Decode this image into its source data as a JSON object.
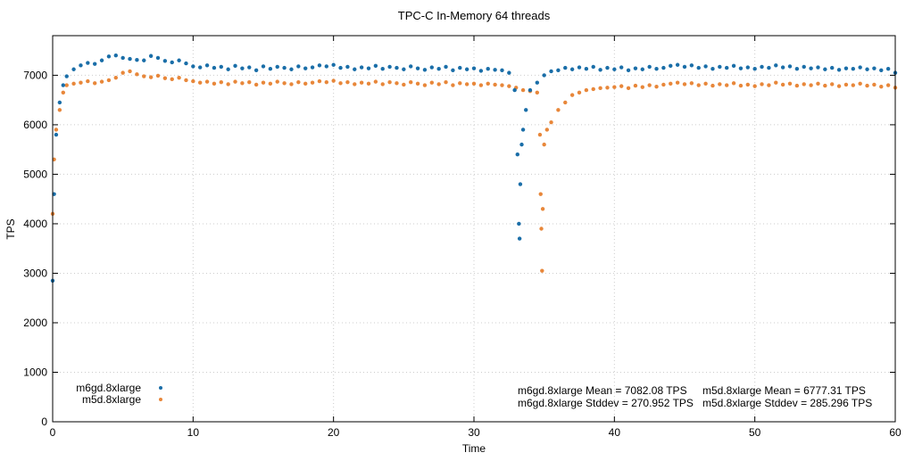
{
  "chart_data": {
    "type": "scatter",
    "title": "TPC-C In-Memory 64 threads",
    "xlabel": "Time",
    "ylabel": "TPS",
    "xlim": [
      0,
      60
    ],
    "ylim": [
      0,
      7800
    ],
    "xticks": [
      "0",
      "10",
      "20",
      "30",
      "40",
      "50",
      "60"
    ],
    "yticks": [
      "0",
      "1000",
      "2000",
      "3000",
      "4000",
      "5000",
      "6000",
      "7000"
    ],
    "grid": true,
    "legend_placement": "bottom-left",
    "colors": {
      "m6gd": "#1a6ea8",
      "m5d": "#e8873a"
    },
    "annotations": [
      "m6gd.8xlarge Mean = 7082.08 TPS",
      "m6gd.8xlarge Stddev = 270.952 TPS",
      "m5d.8xlarge Mean = 6777.31 TPS",
      "m5d.8xlarge Stddev = 285.296 TPS"
    ],
    "series": [
      {
        "name": "m6gd.8xlarge",
        "points": [
          [
            0,
            2850
          ],
          [
            0.1,
            4600
          ],
          [
            0.25,
            5800
          ],
          [
            0.5,
            6450
          ],
          [
            0.75,
            6800
          ],
          [
            1,
            6980
          ],
          [
            1.5,
            7120
          ],
          [
            2,
            7200
          ],
          [
            2.5,
            7250
          ],
          [
            3,
            7230
          ],
          [
            3.5,
            7300
          ],
          [
            4,
            7380
          ],
          [
            4.5,
            7400
          ],
          [
            5,
            7350
          ],
          [
            5.5,
            7330
          ],
          [
            6,
            7310
          ],
          [
            6.5,
            7300
          ],
          [
            7,
            7390
          ],
          [
            7.5,
            7350
          ],
          [
            8,
            7290
          ],
          [
            8.5,
            7260
          ],
          [
            9,
            7300
          ],
          [
            9.5,
            7240
          ],
          [
            10,
            7180
          ],
          [
            10.5,
            7160
          ],
          [
            11,
            7200
          ],
          [
            11.5,
            7150
          ],
          [
            12,
            7170
          ],
          [
            12.5,
            7120
          ],
          [
            13,
            7190
          ],
          [
            13.5,
            7140
          ],
          [
            14,
            7160
          ],
          [
            14.5,
            7100
          ],
          [
            15,
            7180
          ],
          [
            15.5,
            7130
          ],
          [
            16,
            7170
          ],
          [
            16.5,
            7150
          ],
          [
            17,
            7120
          ],
          [
            17.5,
            7180
          ],
          [
            18,
            7140
          ],
          [
            18.5,
            7160
          ],
          [
            19,
            7200
          ],
          [
            19.5,
            7180
          ],
          [
            20,
            7210
          ],
          [
            20.5,
            7150
          ],
          [
            21,
            7170
          ],
          [
            21.5,
            7120
          ],
          [
            22,
            7160
          ],
          [
            22.5,
            7140
          ],
          [
            23,
            7190
          ],
          [
            23.5,
            7130
          ],
          [
            24,
            7170
          ],
          [
            24.5,
            7150
          ],
          [
            25,
            7120
          ],
          [
            25.5,
            7180
          ],
          [
            26,
            7140
          ],
          [
            26.5,
            7110
          ],
          [
            27,
            7160
          ],
          [
            27.5,
            7130
          ],
          [
            28,
            7170
          ],
          [
            28.5,
            7100
          ],
          [
            29,
            7150
          ],
          [
            29.5,
            7120
          ],
          [
            30,
            7140
          ],
          [
            30.5,
            7090
          ],
          [
            31,
            7130
          ],
          [
            31.5,
            7110
          ],
          [
            32,
            7100
          ],
          [
            32.5,
            7050
          ],
          [
            32.9,
            6700
          ],
          [
            33.1,
            5400
          ],
          [
            33.2,
            4000
          ],
          [
            33.25,
            3700
          ],
          [
            33.3,
            4800
          ],
          [
            33.4,
            5600
          ],
          [
            33.5,
            5900
          ],
          [
            33.7,
            6300
          ],
          [
            34,
            6700
          ],
          [
            34.5,
            6850
          ],
          [
            35,
            7000
          ],
          [
            35.5,
            7080
          ],
          [
            36,
            7100
          ],
          [
            36.5,
            7150
          ],
          [
            37,
            7120
          ],
          [
            37.5,
            7160
          ],
          [
            38,
            7130
          ],
          [
            38.5,
            7170
          ],
          [
            39,
            7110
          ],
          [
            39.5,
            7150
          ],
          [
            40,
            7120
          ],
          [
            40.5,
            7160
          ],
          [
            41,
            7100
          ],
          [
            41.5,
            7140
          ],
          [
            42,
            7120
          ],
          [
            42.5,
            7170
          ],
          [
            43,
            7130
          ],
          [
            43.5,
            7150
          ],
          [
            44,
            7190
          ],
          [
            44.5,
            7210
          ],
          [
            45,
            7170
          ],
          [
            45.5,
            7200
          ],
          [
            46,
            7150
          ],
          [
            46.5,
            7180
          ],
          [
            47,
            7130
          ],
          [
            47.5,
            7170
          ],
          [
            48,
            7150
          ],
          [
            48.5,
            7190
          ],
          [
            49,
            7140
          ],
          [
            49.5,
            7160
          ],
          [
            50,
            7130
          ],
          [
            50.5,
            7170
          ],
          [
            51,
            7150
          ],
          [
            51.5,
            7200
          ],
          [
            52,
            7160
          ],
          [
            52.5,
            7180
          ],
          [
            53,
            7130
          ],
          [
            53.5,
            7170
          ],
          [
            54,
            7140
          ],
          [
            54.5,
            7160
          ],
          [
            55,
            7120
          ],
          [
            55.5,
            7150
          ],
          [
            56,
            7110
          ],
          [
            56.5,
            7140
          ],
          [
            57,
            7130
          ],
          [
            57.5,
            7160
          ],
          [
            58,
            7120
          ],
          [
            58.5,
            7140
          ],
          [
            59,
            7100
          ],
          [
            59.5,
            7130
          ],
          [
            60,
            7050
          ]
        ]
      },
      {
        "name": "m5d.8xlarge",
        "points": [
          [
            0,
            4200
          ],
          [
            0.1,
            5300
          ],
          [
            0.25,
            5900
          ],
          [
            0.5,
            6300
          ],
          [
            0.75,
            6650
          ],
          [
            1,
            6800
          ],
          [
            1.5,
            6830
          ],
          [
            2,
            6850
          ],
          [
            2.5,
            6880
          ],
          [
            3,
            6840
          ],
          [
            3.5,
            6870
          ],
          [
            4,
            6900
          ],
          [
            4.5,
            6950
          ],
          [
            5,
            7050
          ],
          [
            5.5,
            7080
          ],
          [
            6,
            7020
          ],
          [
            6.5,
            6980
          ],
          [
            7,
            6960
          ],
          [
            7.5,
            6990
          ],
          [
            8,
            6940
          ],
          [
            8.5,
            6920
          ],
          [
            9,
            6950
          ],
          [
            9.5,
            6900
          ],
          [
            10,
            6880
          ],
          [
            10.5,
            6850
          ],
          [
            11,
            6870
          ],
          [
            11.5,
            6830
          ],
          [
            12,
            6860
          ],
          [
            12.5,
            6820
          ],
          [
            13,
            6870
          ],
          [
            13.5,
            6840
          ],
          [
            14,
            6860
          ],
          [
            14.5,
            6810
          ],
          [
            15,
            6850
          ],
          [
            15.5,
            6830
          ],
          [
            16,
            6870
          ],
          [
            16.5,
            6840
          ],
          [
            17,
            6820
          ],
          [
            17.5,
            6860
          ],
          [
            18,
            6830
          ],
          [
            18.5,
            6850
          ],
          [
            19,
            6880
          ],
          [
            19.5,
            6860
          ],
          [
            20,
            6890
          ],
          [
            20.5,
            6840
          ],
          [
            21,
            6860
          ],
          [
            21.5,
            6820
          ],
          [
            22,
            6850
          ],
          [
            22.5,
            6830
          ],
          [
            23,
            6870
          ],
          [
            23.5,
            6820
          ],
          [
            24,
            6860
          ],
          [
            24.5,
            6840
          ],
          [
            25,
            6810
          ],
          [
            25.5,
            6860
          ],
          [
            26,
            6830
          ],
          [
            26.5,
            6800
          ],
          [
            27,
            6850
          ],
          [
            27.5,
            6820
          ],
          [
            28,
            6860
          ],
          [
            28.5,
            6800
          ],
          [
            29,
            6840
          ],
          [
            29.5,
            6820
          ],
          [
            30,
            6830
          ],
          [
            30.5,
            6800
          ],
          [
            31,
            6830
          ],
          [
            31.5,
            6810
          ],
          [
            32,
            6800
          ],
          [
            32.5,
            6780
          ],
          [
            33,
            6750
          ],
          [
            33.5,
            6700
          ],
          [
            34,
            6680
          ],
          [
            34.5,
            6650
          ],
          [
            34.7,
            5800
          ],
          [
            34.75,
            4600
          ],
          [
            34.8,
            3900
          ],
          [
            34.85,
            3050
          ],
          [
            34.9,
            4300
          ],
          [
            35,
            5600
          ],
          [
            35.2,
            5900
          ],
          [
            35.5,
            6050
          ],
          [
            36,
            6300
          ],
          [
            36.5,
            6450
          ],
          [
            37,
            6600
          ],
          [
            37.5,
            6650
          ],
          [
            38,
            6700
          ],
          [
            38.5,
            6720
          ],
          [
            39,
            6740
          ],
          [
            39.5,
            6750
          ],
          [
            40,
            6760
          ],
          [
            40.5,
            6780
          ],
          [
            41,
            6740
          ],
          [
            41.5,
            6790
          ],
          [
            42,
            6760
          ],
          [
            42.5,
            6800
          ],
          [
            43,
            6770
          ],
          [
            43.5,
            6810
          ],
          [
            44,
            6830
          ],
          [
            44.5,
            6850
          ],
          [
            45,
            6820
          ],
          [
            45.5,
            6840
          ],
          [
            46,
            6800
          ],
          [
            46.5,
            6830
          ],
          [
            47,
            6790
          ],
          [
            47.5,
            6820
          ],
          [
            48,
            6800
          ],
          [
            48.5,
            6840
          ],
          [
            49,
            6790
          ],
          [
            49.5,
            6810
          ],
          [
            50,
            6780
          ],
          [
            50.5,
            6820
          ],
          [
            51,
            6800
          ],
          [
            51.5,
            6850
          ],
          [
            52,
            6810
          ],
          [
            52.5,
            6830
          ],
          [
            53,
            6790
          ],
          [
            53.5,
            6820
          ],
          [
            54,
            6800
          ],
          [
            54.5,
            6830
          ],
          [
            55,
            6790
          ],
          [
            55.5,
            6820
          ],
          [
            56,
            6780
          ],
          [
            56.5,
            6810
          ],
          [
            57,
            6800
          ],
          [
            57.5,
            6830
          ],
          [
            58,
            6790
          ],
          [
            58.5,
            6810
          ],
          [
            59,
            6770
          ],
          [
            59.5,
            6800
          ],
          [
            60,
            6750
          ]
        ]
      }
    ]
  }
}
